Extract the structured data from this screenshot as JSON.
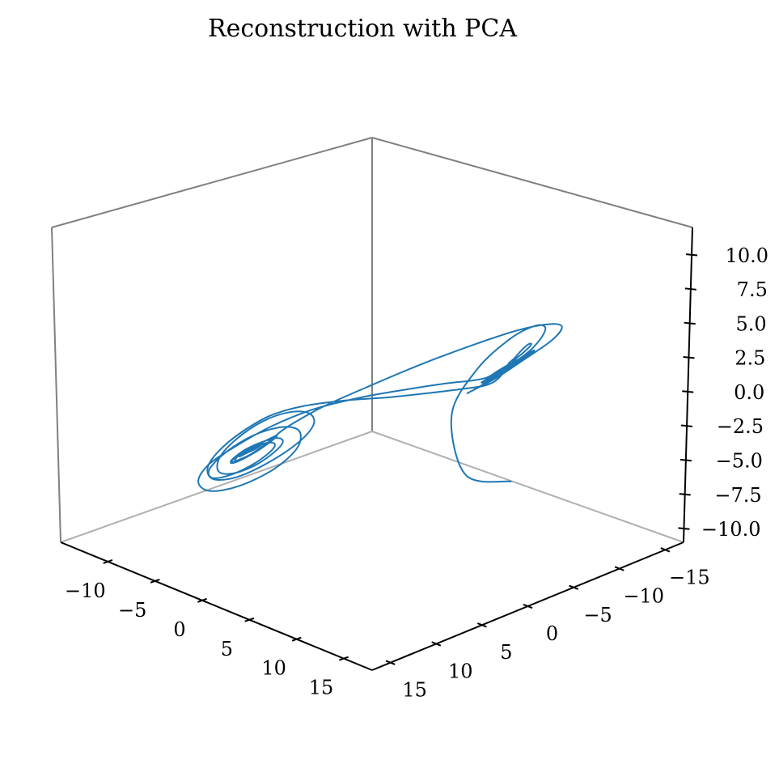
{
  "chart_data": {
    "type": "line",
    "projection": "3d",
    "title": "Reconstruction with PCA",
    "xlabel": "",
    "ylabel": "",
    "zlabel": "",
    "xlim": [
      -15,
      18
    ],
    "ylim": [
      -17,
      17
    ],
    "zlim": [
      -11,
      12
    ],
    "x_ticks": [
      {
        "value": 15,
        "label": "15"
      },
      {
        "value": 10,
        "label": "10"
      },
      {
        "value": 5,
        "label": "5"
      },
      {
        "value": 0,
        "label": "0"
      },
      {
        "value": -5,
        "label": "−5"
      },
      {
        "value": -10,
        "label": "−10"
      }
    ],
    "y_ticks": [
      {
        "value": -15,
        "label": "−15"
      },
      {
        "value": -10,
        "label": "−10"
      },
      {
        "value": -5,
        "label": "−5"
      },
      {
        "value": 0,
        "label": "0"
      },
      {
        "value": 5,
        "label": "5"
      },
      {
        "value": 10,
        "label": "10"
      },
      {
        "value": 15,
        "label": "15"
      }
    ],
    "z_ticks": [
      {
        "value": 10,
        "label": "10.0"
      },
      {
        "value": 7.5,
        "label": "7.5"
      },
      {
        "value": 5,
        "label": "5.0"
      },
      {
        "value": 2.5,
        "label": "2.5"
      },
      {
        "value": 0,
        "label": "0.0"
      },
      {
        "value": -2.5,
        "label": "−2.5"
      },
      {
        "value": -5,
        "label": "−5.0"
      },
      {
        "value": -7.5,
        "label": "−7.5"
      },
      {
        "value": -10,
        "label": "−10.0"
      }
    ],
    "grid": false,
    "legend": "none",
    "series": [
      {
        "color": "#1f77b4",
        "trajectory": "lorenz-like double-lobe attractor",
        "points": [
          [
            -15.6,
            -2.6,
            -0.6
          ],
          [
            -9.3,
            -2.8,
            -2.2
          ],
          [
            -5.9,
            -4.2,
            0.9
          ],
          [
            -5.7,
            -7.5,
            3.7
          ],
          [
            -7.3,
            -10.2,
            6.1
          ],
          [
            -9.1,
            -11.5,
            7.4
          ],
          [
            -10.5,
            -11.5,
            7.8
          ],
          [
            -11.1,
            -10.7,
            7.5
          ],
          [
            -11.0,
            -9.5,
            6.7
          ],
          [
            -10.5,
            -8.6,
            6.0
          ],
          [
            -9.8,
            -8.1,
            5.4
          ],
          [
            -9.3,
            -8.1,
            5.0
          ],
          [
            -9.0,
            -8.4,
            5.1
          ],
          [
            -9.1,
            -9.0,
            5.4
          ],
          [
            -9.4,
            -9.6,
            6.0
          ],
          [
            -9.8,
            -10.1,
            6.5
          ],
          [
            -10.1,
            -10.2,
            6.6
          ],
          [
            -10.1,
            -9.9,
            6.4
          ],
          [
            -9.9,
            -9.3,
            6.0
          ],
          [
            -9.5,
            -8.5,
            5.4
          ],
          [
            -9.2,
            -7.6,
            4.6
          ],
          [
            -8.9,
            -6.8,
            4.0
          ],
          [
            -8.5,
            -5.8,
            3.7
          ],
          [
            -7.5,
            -4.4,
            3.4
          ],
          [
            -5.7,
            -2.1,
            2.9
          ],
          [
            -3.3,
            1.0,
            2.3
          ],
          [
            -0.6,
            4.2,
            1.7
          ],
          [
            2.2,
            6.8,
            0.8
          ],
          [
            4.8,
            8.5,
            -0.5
          ],
          [
            7.4,
            9.6,
            -2.4
          ],
          [
            9.9,
            10.0,
            -4.5
          ],
          [
            12.1,
            9.4,
            -6.6
          ],
          [
            13.2,
            7.7,
            -8.1
          ],
          [
            12.9,
            5.1,
            -8.3
          ],
          [
            11.3,
            2.6,
            -7.1
          ],
          [
            9.0,
            1.0,
            -5.1
          ],
          [
            7.2,
            0.8,
            -3.2
          ],
          [
            6.4,
            2.1,
            -1.9
          ],
          [
            6.8,
            4.1,
            -1.6
          ],
          [
            8.2,
            6.2,
            -2.4
          ],
          [
            10.1,
            7.7,
            -4.1
          ],
          [
            11.9,
            8.1,
            -6.0
          ],
          [
            12.9,
            7.3,
            -7.5
          ],
          [
            12.8,
            5.6,
            -7.9
          ],
          [
            11.7,
            3.8,
            -7.2
          ],
          [
            10.4,
            2.7,
            -6.0
          ],
          [
            9.5,
            2.5,
            -5.0
          ],
          [
            9.3,
            3.3,
            -4.5
          ],
          [
            9.8,
            4.7,
            -4.7
          ],
          [
            10.8,
            5.9,
            -5.4
          ],
          [
            11.8,
            6.5,
            -6.3
          ],
          [
            12.4,
            6.2,
            -6.8
          ],
          [
            12.3,
            5.1,
            -6.8
          ],
          [
            11.6,
            4.0,
            -6.2
          ],
          [
            10.6,
            3.2,
            -5.3
          ],
          [
            9.8,
            3.0,
            -4.6
          ],
          [
            9.5,
            3.5,
            -4.4
          ],
          [
            9.8,
            4.5,
            -4.7
          ],
          [
            10.6,
            5.5,
            -5.3
          ],
          [
            11.4,
            6.2,
            -6.0
          ],
          [
            11.8,
            6.3,
            -6.5
          ],
          [
            11.6,
            5.8,
            -6.4
          ],
          [
            10.9,
            5.1,
            -5.9
          ],
          [
            9.8,
            4.6,
            -5.0
          ],
          [
            8.6,
            4.6,
            -4.1
          ],
          [
            7.5,
            4.6,
            -3.2
          ],
          [
            6.1,
            4.0,
            -2.1
          ],
          [
            4.0,
            2.3,
            -0.5
          ],
          [
            1.4,
            -0.8,
            1.3
          ],
          [
            -1.6,
            -4.6,
            3.3
          ],
          [
            -4.8,
            -8.0,
            5.2
          ],
          [
            -8.0,
            -10.4,
            6.9
          ],
          [
            -10.9,
            -11.7,
            8.1
          ],
          [
            -12.9,
            -11.4,
            8.6
          ],
          [
            -13.5,
            -9.6,
            8.1
          ],
          [
            -12.7,
            -7.1,
            6.9
          ],
          [
            -10.9,
            -5.2,
            5.2
          ],
          [
            -8.9,
            -4.2,
            3.8
          ],
          [
            -7.7,
            -4.5,
            3.1
          ],
          [
            -7.5,
            -5.9,
            3.2
          ],
          [
            -8.3,
            -7.7,
            4.1
          ],
          [
            -9.6,
            -9.1,
            5.3
          ],
          [
            -10.8,
            -9.7,
            6.3
          ],
          [
            -11.4,
            -9.2,
            6.7
          ],
          [
            -11.2,
            -8.0,
            6.3
          ],
          [
            -10.3,
            -6.6,
            5.4
          ],
          [
            -9.2,
            -5.6,
            4.5
          ],
          [
            -8.5,
            -5.5,
            4.0
          ],
          [
            -8.4,
            -6.2,
            4.0
          ],
          [
            -9.0,
            -7.4,
            4.7
          ],
          [
            -9.9,
            -8.4,
            5.5
          ],
          [
            -10.7,
            -8.9,
            6.1
          ],
          [
            -11.0,
            -8.7,
            6.3
          ],
          [
            -10.6,
            -7.8,
            5.9
          ],
          [
            -9.8,
            -6.7,
            5.1
          ],
          [
            -8.9,
            -5.9,
            4.3
          ],
          [
            -8.4,
            -5.7,
            3.9
          ],
          [
            -8.4,
            -6.3,
            4.0
          ],
          [
            -9.0,
            -7.3,
            4.6
          ],
          [
            -9.8,
            -8.2,
            5.3
          ],
          [
            -10.5,
            -8.7,
            5.9
          ],
          [
            -10.7,
            -8.4,
            6.0
          ],
          [
            -10.3,
            -7.6,
            5.7
          ],
          [
            -9.5,
            -6.6,
            5.0
          ],
          [
            -8.8,
            -5.9,
            4.4
          ],
          [
            -8.2,
            -4.5,
            4.2
          ],
          [
            -7.1,
            -2.3,
            4.0
          ],
          [
            -5.3,
            0.8,
            3.5
          ],
          [
            -2.9,
            4.3,
            2.7
          ],
          [
            -0.2,
            7.6,
            1.5
          ],
          [
            2.7,
            10.2,
            -0.3
          ],
          [
            5.9,
            11.7,
            -2.6
          ],
          [
            9.4,
            11.8,
            -5.1
          ],
          [
            12.6,
            10.1,
            -7.7
          ],
          [
            14.4,
            7.0,
            -9.5
          ],
          [
            14.1,
            3.7,
            -9.6
          ],
          [
            11.9,
            1.4,
            -8.0
          ],
          [
            9.2,
            1.0,
            -5.6
          ],
          [
            7.4,
            2.4,
            -3.5
          ],
          [
            7.1,
            4.8,
            -2.7
          ],
          [
            8.3,
            7.2,
            -3.3
          ],
          [
            10.4,
            8.7,
            -5.0
          ],
          [
            12.4,
            8.9,
            -6.9
          ],
          [
            13.4,
            7.6,
            -8.1
          ],
          [
            13.1,
            5.6,
            -8.1
          ],
          [
            11.8,
            3.8,
            -7.1
          ],
          [
            10.4,
            3.0,
            -5.8
          ],
          [
            9.7,
            3.4,
            -5.0
          ],
          [
            9.9,
            4.6,
            -4.9
          ],
          [
            10.7,
            5.9,
            -5.5
          ],
          [
            11.7,
            6.6,
            -6.3
          ],
          [
            12.2,
            6.4,
            -6.8
          ],
          [
            12.0,
            5.6,
            -6.7
          ],
          [
            11.3,
            4.6,
            -6.1
          ],
          [
            10.5,
            4.0,
            -5.4
          ],
          [
            10.1,
            4.0,
            -5.0
          ],
          [
            10.2,
            4.6,
            -5.1
          ],
          [
            10.8,
            5.4,
            -5.6
          ],
          [
            11.4,
            5.9,
            -6.0
          ],
          [
            11.6,
            5.9,
            -6.2
          ],
          [
            11.4,
            5.4,
            -6.0
          ],
          [
            10.8,
            4.9,
            -5.6
          ],
          [
            10.3,
            4.6,
            -5.2
          ],
          [
            10.1,
            4.6,
            -5.0
          ],
          [
            10.3,
            5.0,
            -5.2
          ],
          [
            10.7,
            5.5,
            -5.5
          ],
          [
            11.1,
            5.7,
            -5.8
          ],
          [
            11.2,
            5.6,
            -5.9
          ],
          [
            11.0,
            5.3,
            -5.7
          ],
          [
            10.6,
            5.0,
            -5.4
          ],
          [
            10.3,
            4.8,
            -5.2
          ],
          [
            10.2,
            4.9,
            -5.1
          ],
          [
            10.4,
            5.2,
            -5.3
          ],
          [
            10.7,
            5.5,
            -5.5
          ],
          [
            10.9,
            5.6,
            -5.7
          ],
          [
            10.8,
            5.5,
            -5.6
          ],
          [
            10.6,
            5.2,
            -5.4
          ],
          [
            10.4,
            5.0,
            -5.2
          ],
          [
            10.3,
            5.0,
            -5.2
          ],
          [
            10.3,
            5.1,
            -5.3
          ],
          [
            10.5,
            5.3,
            -5.4
          ],
          [
            10.6,
            5.4,
            -5.5
          ],
          [
            10.6,
            5.3,
            -5.5
          ],
          [
            10.5,
            5.2,
            -5.4
          ],
          [
            10.4,
            5.1,
            -5.3
          ]
        ]
      }
    ]
  }
}
